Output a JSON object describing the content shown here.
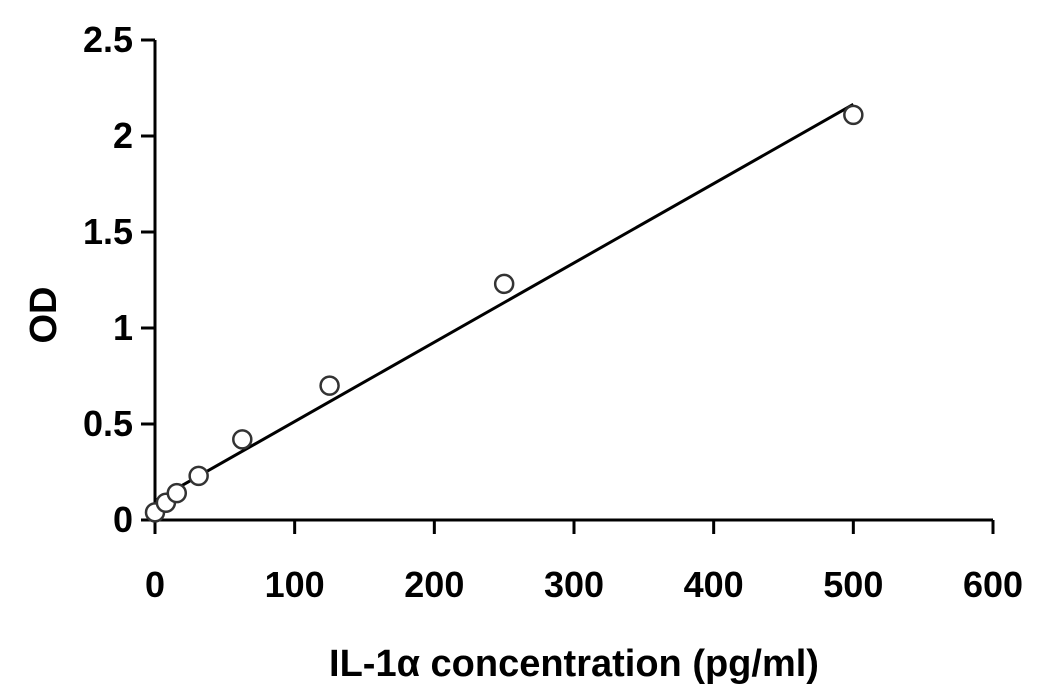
{
  "chart_data": {
    "type": "scatter",
    "title": "",
    "xlabel": "IL-1α concentration (pg/ml)",
    "ylabel": "OD",
    "xlim": [
      0,
      600
    ],
    "ylim": [
      0,
      2.5
    ],
    "x_ticks": [
      0,
      100,
      200,
      300,
      400,
      500,
      600
    ],
    "y_ticks": [
      0,
      0.5,
      1,
      1.5,
      2,
      2.5
    ],
    "x_tick_labels": [
      "0",
      "100",
      "200",
      "300",
      "400",
      "500",
      "600"
    ],
    "y_tick_labels": [
      "0",
      "0.5",
      "1",
      "1.5",
      "2",
      "2.5"
    ],
    "grid": false,
    "legend": "none",
    "series": [
      {
        "marker": "open-circle",
        "x": [
          0,
          7.8,
          15.6,
          31.25,
          62.5,
          125,
          250,
          500
        ],
        "y": [
          0.04,
          0.09,
          0.14,
          0.23,
          0.42,
          0.7,
          1.23,
          2.11
        ]
      }
    ],
    "trendline": {
      "type": "linear",
      "x_range": [
        0,
        500
      ],
      "slope": 0.00413,
      "intercept": 0.1
    }
  }
}
